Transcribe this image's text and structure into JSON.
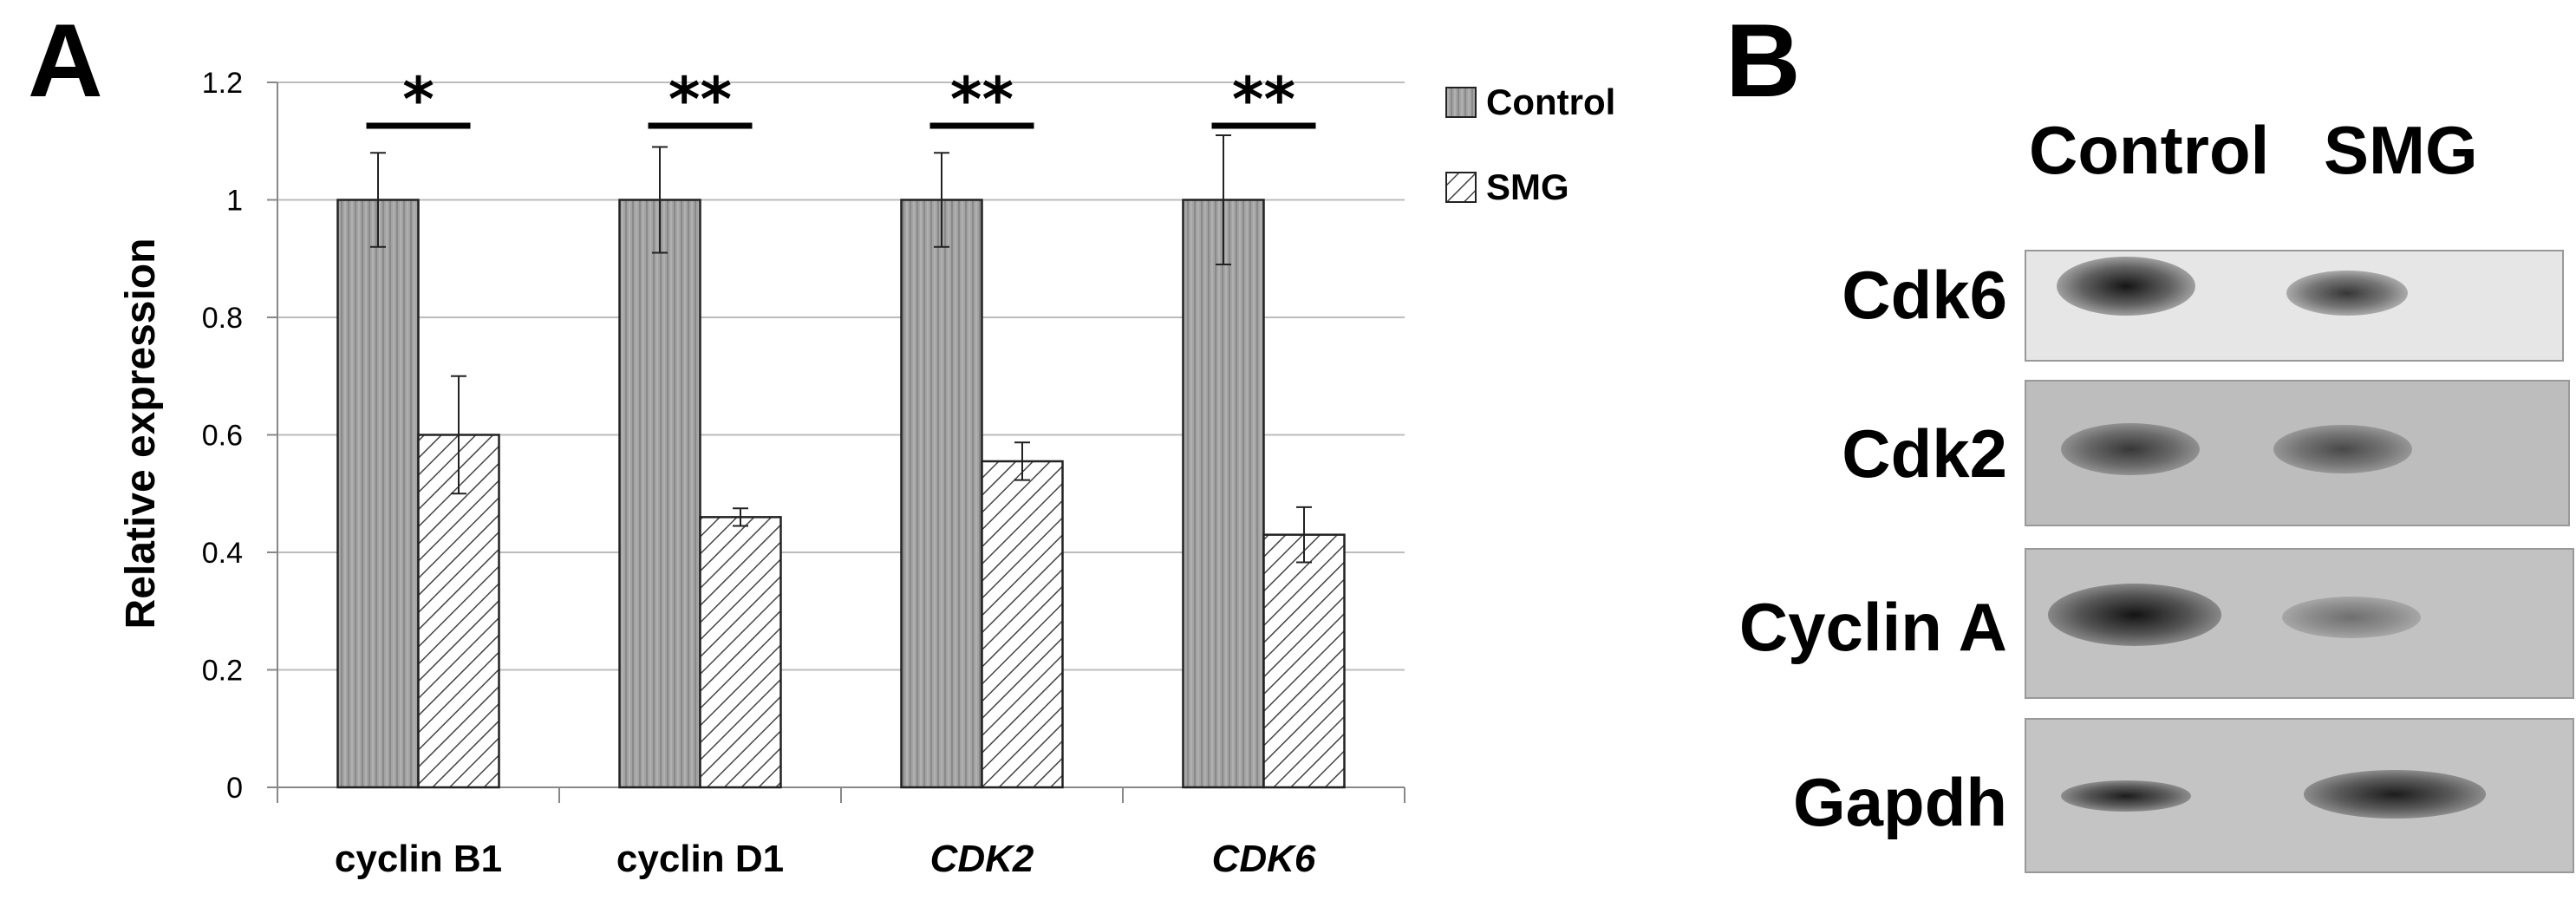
{
  "panels": {
    "a_label": "A",
    "b_label": "B"
  },
  "chart_data": {
    "type": "bar",
    "title": "",
    "xlabel": "",
    "ylabel": "Relative expression",
    "ylim": [
      0,
      1.2
    ],
    "yticks": [
      "0",
      "0.2",
      "0.4",
      "0.6",
      "0.8",
      "1",
      "1.2"
    ],
    "grid": true,
    "legend": "top-right",
    "categories": [
      "cyclin B1",
      "cyclin D1",
      "CDK2",
      "CDK6"
    ],
    "category_italic": [
      false,
      false,
      true,
      true
    ],
    "series": [
      {
        "name": "Control",
        "values": [
          1.0,
          1.0,
          1.0,
          1.0
        ],
        "errors": [
          0.08,
          0.09,
          0.08,
          0.11
        ],
        "pattern": "vertical-stripes",
        "color": "#a0a0a0"
      },
      {
        "name": "SMG",
        "values": [
          0.6,
          0.46,
          0.555,
          0.43
        ],
        "errors": [
          0.1,
          0.015,
          0.032,
          0.047
        ],
        "pattern": "diagonal-hatch",
        "color": "#ffffff"
      }
    ],
    "significance": [
      "*",
      "**",
      "**",
      "**"
    ]
  },
  "blot": {
    "columns": [
      "Control",
      "SMG"
    ],
    "rows": [
      "Cdk6",
      "Cdk2",
      "Cyclin A",
      "Gapdh"
    ]
  }
}
